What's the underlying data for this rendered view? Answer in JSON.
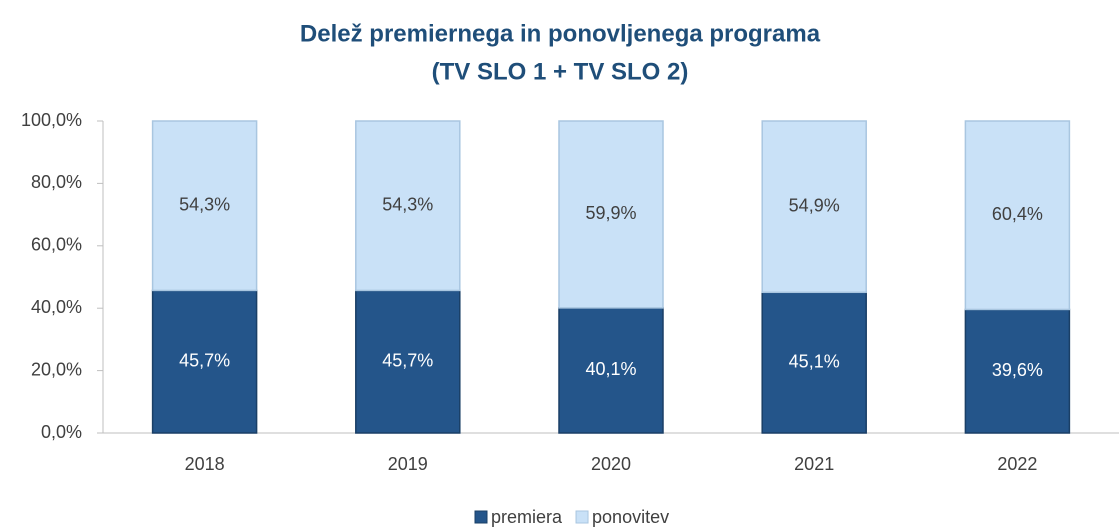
{
  "chart_data": {
    "type": "stacked_bar",
    "title": "Delež premiernega in ponovljenega programa",
    "subtitle": "(TV SLO 1 + TV SLO 2)",
    "categories": [
      "2018",
      "2019",
      "2020",
      "2021",
      "2022"
    ],
    "series": [
      {
        "name": "premiera",
        "color": "#24558a",
        "values": [
          45.7,
          45.7,
          40.1,
          45.1,
          39.6
        ],
        "value_labels": [
          "45,7%",
          "45,7%",
          "40,1%",
          "45,1%",
          "39,6%"
        ]
      },
      {
        "name": "ponovitev",
        "color": "#c9e1f7",
        "values": [
          54.3,
          54.3,
          59.9,
          54.9,
          60.4
        ],
        "value_labels": [
          "54,3%",
          "54,3%",
          "59,9%",
          "54,9%",
          "60,4%"
        ]
      }
    ],
    "ylim": [
      0,
      100
    ],
    "yticks": [
      {
        "value": 0,
        "label": "0,0%"
      },
      {
        "value": 20,
        "label": "20,0%"
      },
      {
        "value": 40,
        "label": "40,0%"
      },
      {
        "value": 60,
        "label": "60,0%"
      },
      {
        "value": 80,
        "label": "80,0%"
      },
      {
        "value": 100,
        "label": "100,0%"
      }
    ],
    "legend": "bottom"
  }
}
